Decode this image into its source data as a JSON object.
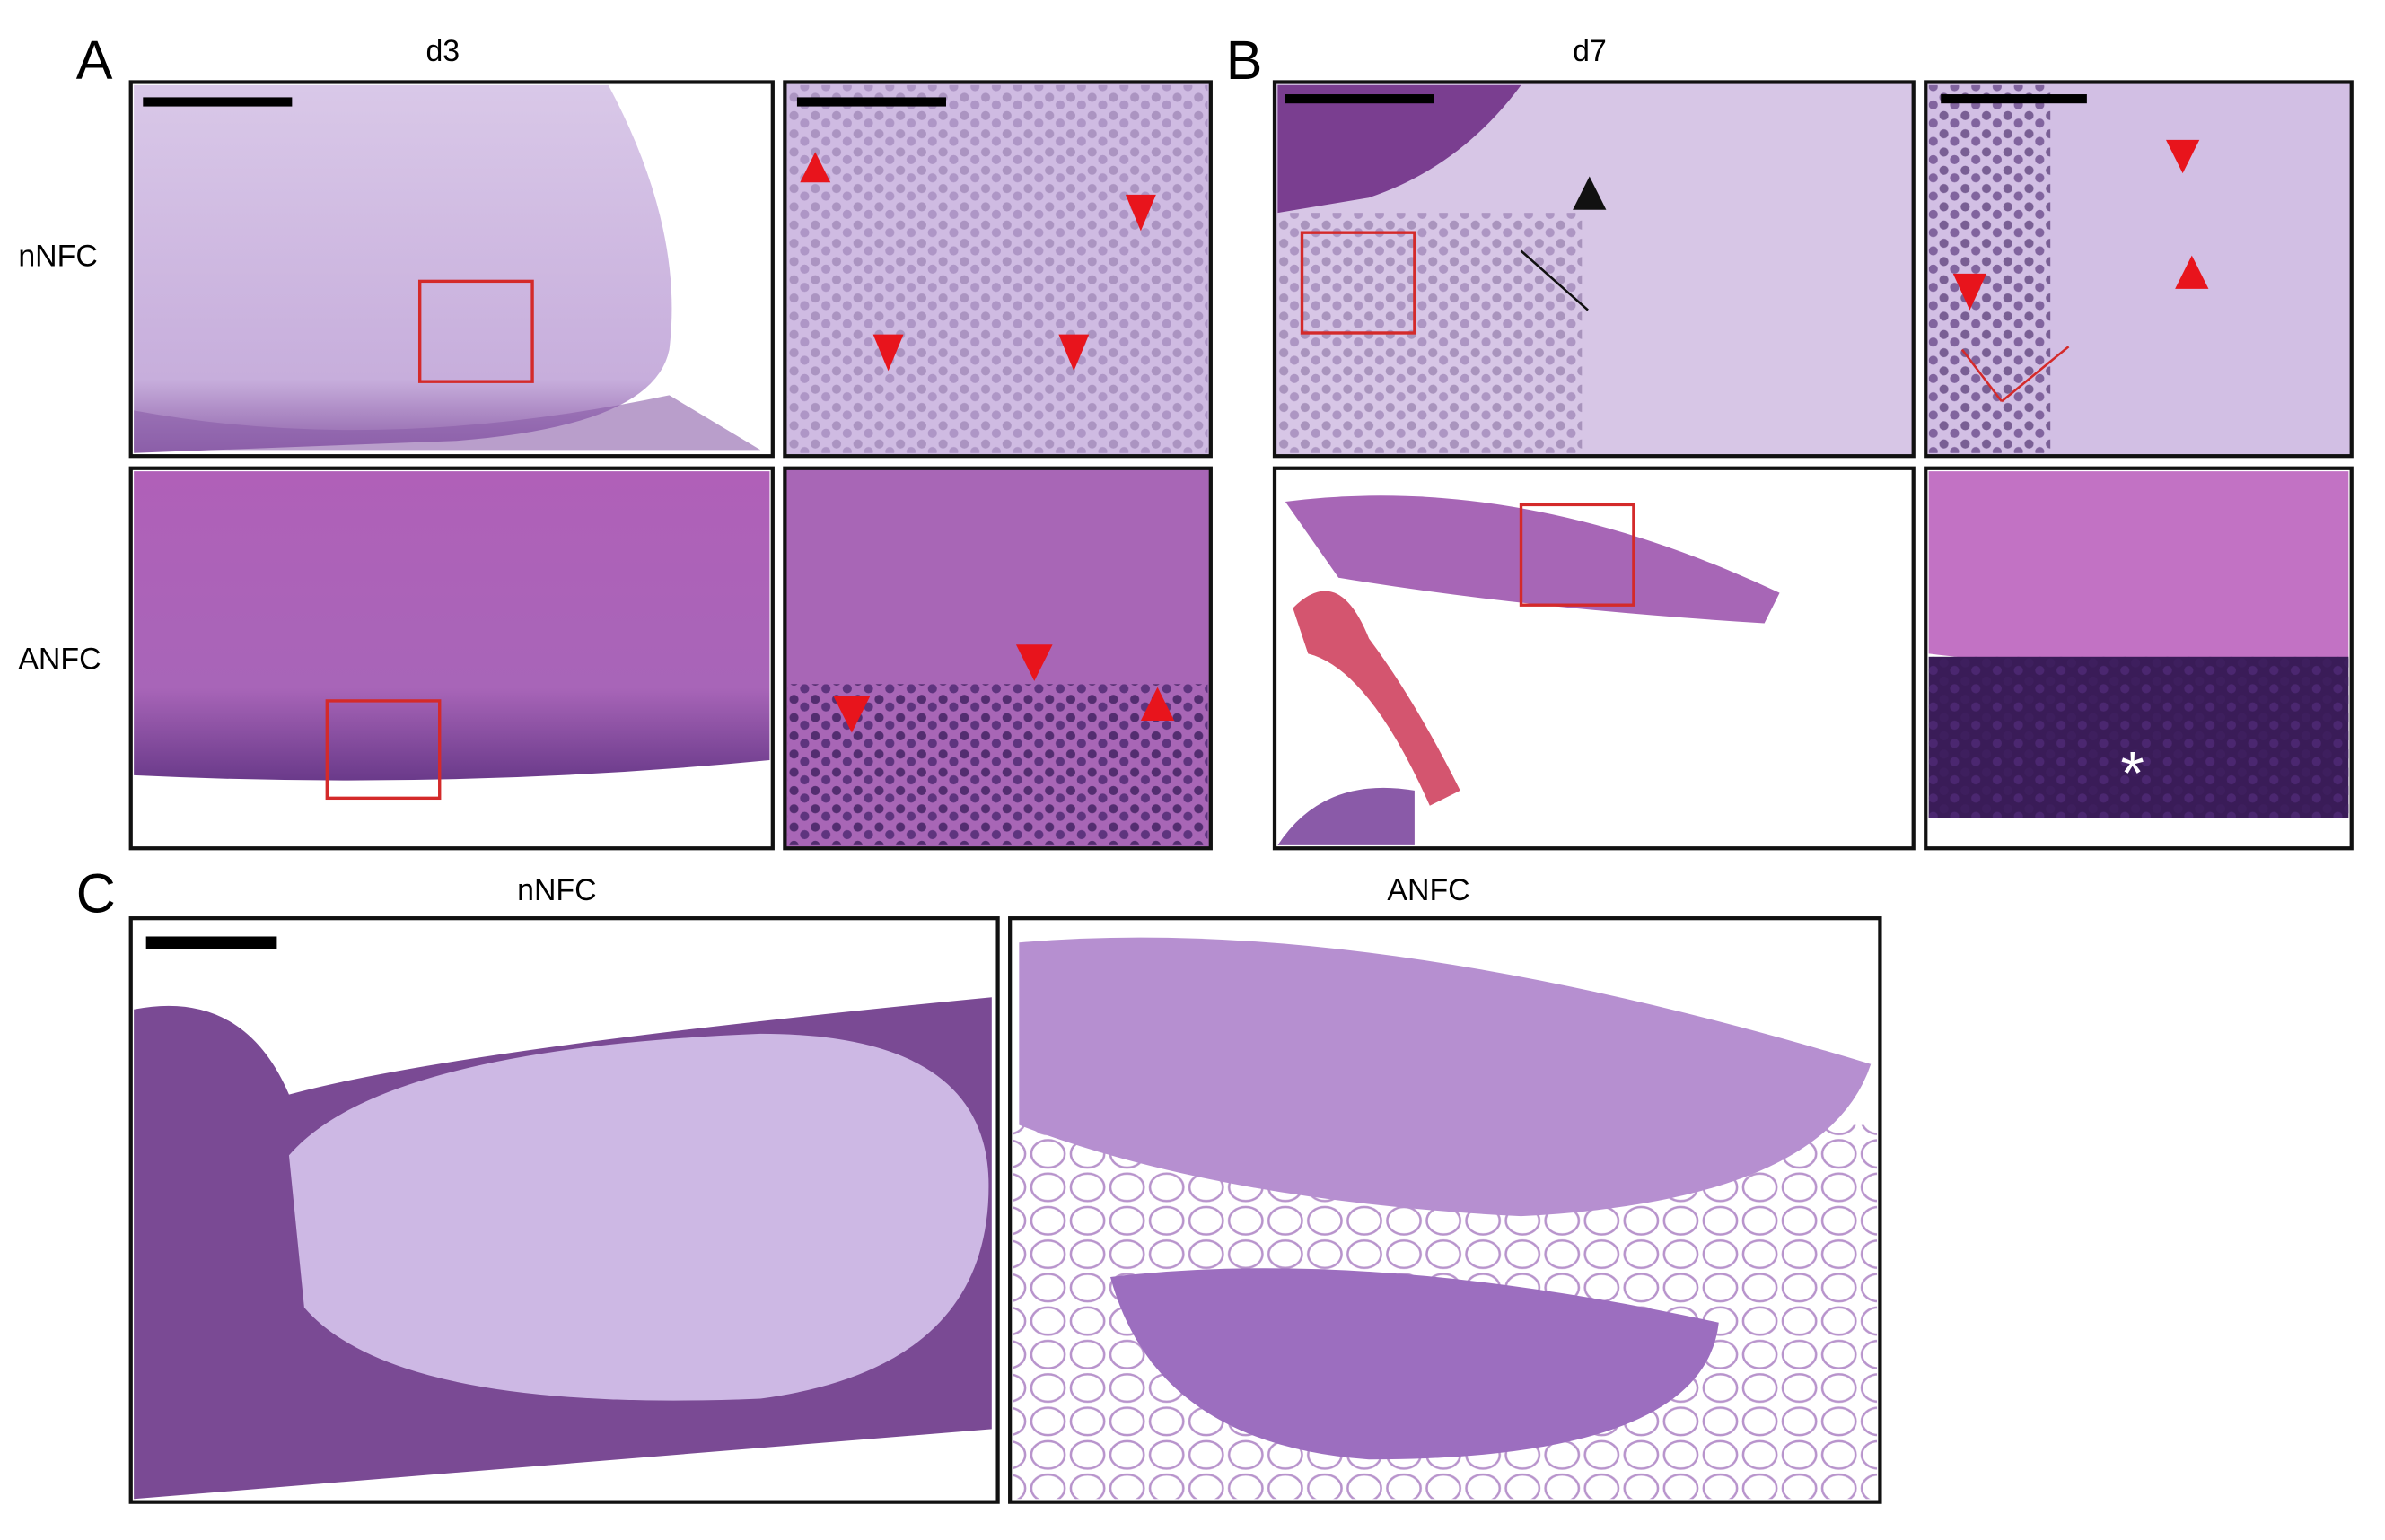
{
  "panels": {
    "A": {
      "label": "A",
      "column_title": "d3"
    },
    "B": {
      "label": "B",
      "column_title": "d7"
    },
    "C": {
      "label": "C",
      "left_title": "nNFC",
      "right_title": "ANFC"
    }
  },
  "row_labels": [
    "nNFC",
    "ANFC"
  ],
  "annotations": {
    "asterisk": "*"
  }
}
